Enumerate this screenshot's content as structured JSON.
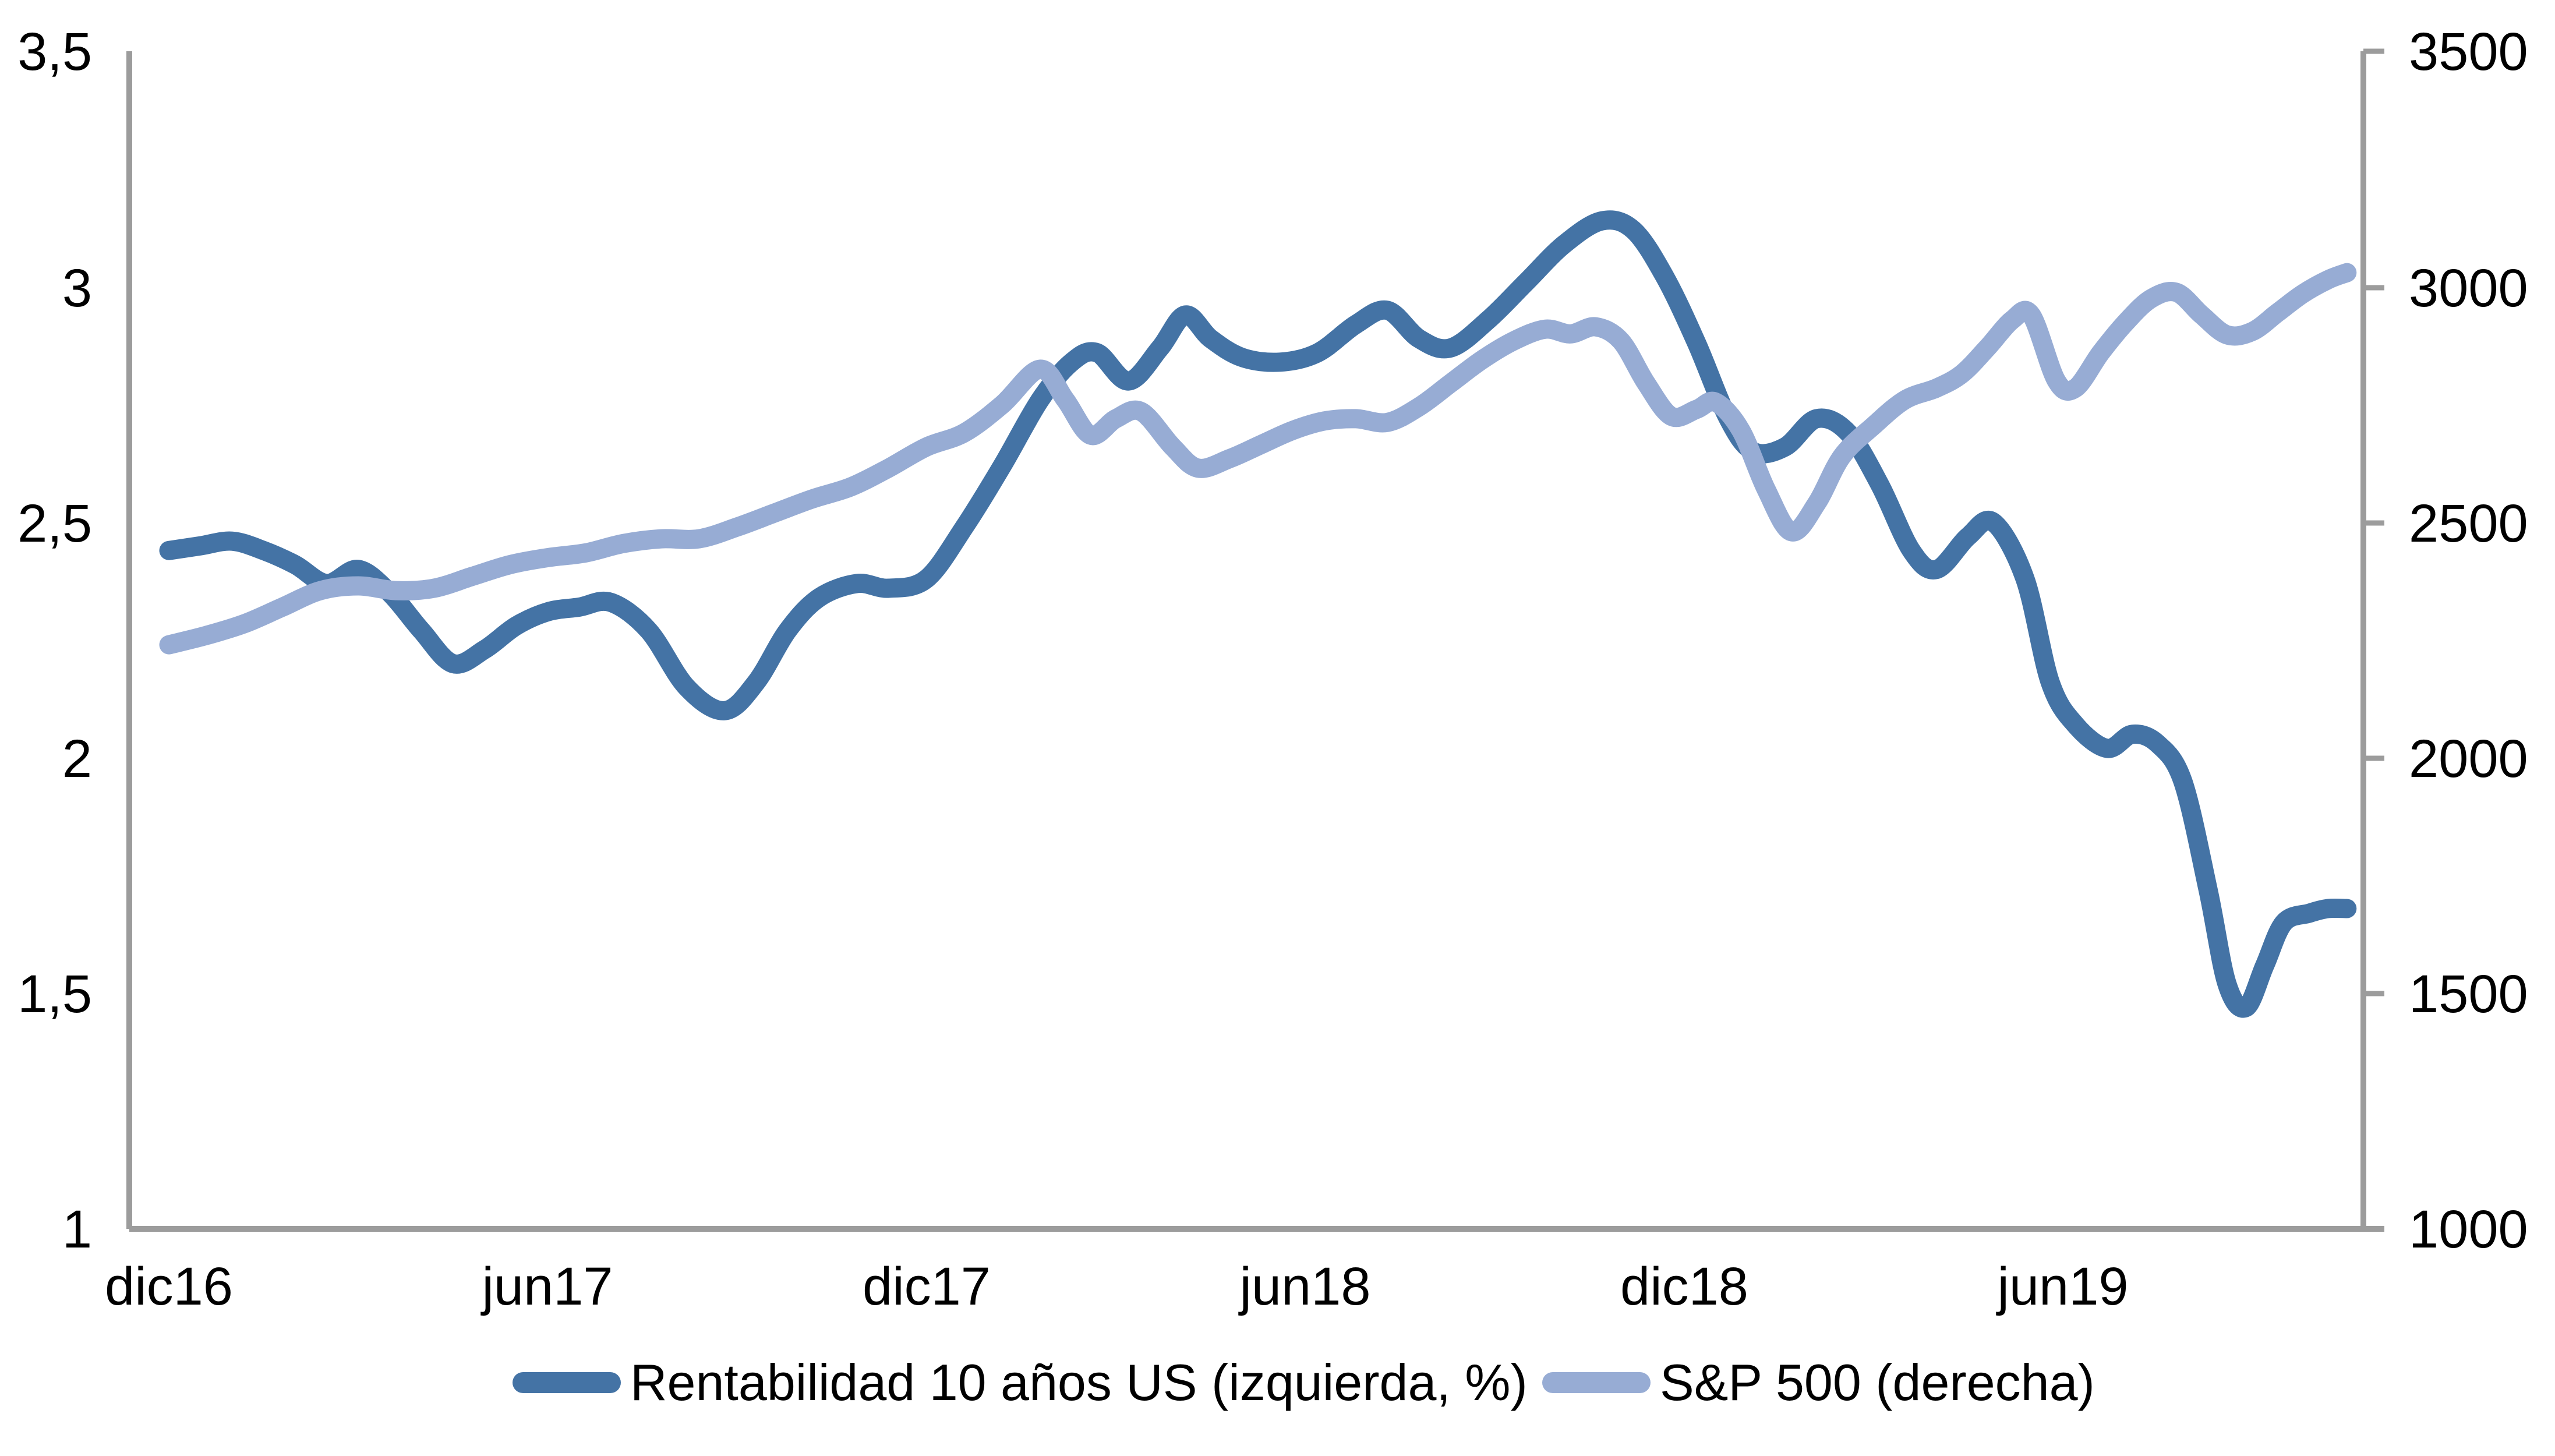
{
  "chart_data": {
    "type": "line",
    "title": "",
    "xlabel": "",
    "ylabel_left": "",
    "ylabel_right": "",
    "grid": false,
    "axis_color": "#9C9C9C",
    "text_color": "#000000",
    "x_axis": {
      "tick_labels": [
        "dic16",
        "jun17",
        "dic17",
        "jun18",
        "dic18",
        "jun19"
      ],
      "tick_months": [
        0,
        6,
        12,
        18,
        24,
        30
      ],
      "domain_months": [
        0,
        34.5
      ]
    },
    "left_axis": {
      "min": 1,
      "max": 3.5,
      "tick_values": [
        3.5,
        3,
        2.5,
        2,
        1.5,
        1
      ],
      "tick_labels": [
        "3,5",
        "3",
        "2,5",
        "2",
        "1,5",
        "1"
      ]
    },
    "right_axis": {
      "min": 1000,
      "max": 3500,
      "tick_values": [
        3500,
        3000,
        2500,
        2000,
        1500,
        1000
      ],
      "tick_labels": [
        "3500",
        "3000",
        "2500",
        "2000",
        "1500",
        "1000"
      ]
    },
    "legend": {
      "position": "bottom"
    },
    "series": [
      {
        "name": "Rentabilidad 10 años US (izquierda, %)",
        "axis": "left",
        "color": "#4473A5",
        "points": [
          [
            0,
            2.44
          ],
          [
            0.5,
            2.45
          ],
          [
            1,
            2.46
          ],
          [
            1.5,
            2.44
          ],
          [
            2,
            2.41
          ],
          [
            2.5,
            2.37
          ],
          [
            3,
            2.4
          ],
          [
            3.5,
            2.35
          ],
          [
            4,
            2.27
          ],
          [
            4.5,
            2.2
          ],
          [
            5,
            2.23
          ],
          [
            5.5,
            2.28
          ],
          [
            6,
            2.31
          ],
          [
            6.5,
            2.32
          ],
          [
            7,
            2.33
          ],
          [
            7.6,
            2.27
          ],
          [
            8.2,
            2.15
          ],
          [
            8.8,
            2.1
          ],
          [
            9.3,
            2.16
          ],
          [
            9.8,
            2.27
          ],
          [
            10.3,
            2.34
          ],
          [
            10.9,
            2.37
          ],
          [
            11.4,
            2.36
          ],
          [
            12,
            2.38
          ],
          [
            12.6,
            2.49
          ],
          [
            13.2,
            2.62
          ],
          [
            13.8,
            2.76
          ],
          [
            14.3,
            2.84
          ],
          [
            14.7,
            2.86
          ],
          [
            15.2,
            2.8
          ],
          [
            15.7,
            2.87
          ],
          [
            16.1,
            2.94
          ],
          [
            16.5,
            2.89
          ],
          [
            17,
            2.85
          ],
          [
            17.6,
            2.84
          ],
          [
            18.2,
            2.86
          ],
          [
            18.8,
            2.92
          ],
          [
            19.3,
            2.95
          ],
          [
            19.8,
            2.89
          ],
          [
            20.3,
            2.87
          ],
          [
            20.9,
            2.93
          ],
          [
            21.5,
            3.01
          ],
          [
            22.1,
            3.09
          ],
          [
            22.7,
            3.14
          ],
          [
            23.2,
            3.12
          ],
          [
            23.7,
            3.02
          ],
          [
            24.2,
            2.88
          ],
          [
            24.7,
            2.72
          ],
          [
            25.1,
            2.65
          ],
          [
            25.6,
            2.66
          ],
          [
            26.1,
            2.72
          ],
          [
            26.6,
            2.69
          ],
          [
            27.1,
            2.58
          ],
          [
            27.6,
            2.44
          ],
          [
            28,
            2.4
          ],
          [
            28.5,
            2.47
          ],
          [
            28.9,
            2.5
          ],
          [
            29.4,
            2.38
          ],
          [
            29.8,
            2.16
          ],
          [
            30.2,
            2.07
          ],
          [
            30.7,
            2.02
          ],
          [
            31.1,
            2.05
          ],
          [
            31.5,
            2.03
          ],
          [
            31.9,
            1.95
          ],
          [
            32.3,
            1.72
          ],
          [
            32.6,
            1.52
          ],
          [
            32.9,
            1.47
          ],
          [
            33.2,
            1.56
          ],
          [
            33.5,
            1.65
          ],
          [
            33.9,
            1.67
          ],
          [
            34.2,
            1.68
          ],
          [
            34.5,
            1.68
          ]
        ]
      },
      {
        "name": "S&P 500 (derecha)",
        "axis": "right",
        "color": "#97ACD4",
        "points": [
          [
            0,
            2240
          ],
          [
            0.6,
            2260
          ],
          [
            1.2,
            2285
          ],
          [
            1.8,
            2320
          ],
          [
            2.4,
            2355
          ],
          [
            3,
            2365
          ],
          [
            3.6,
            2355
          ],
          [
            4.2,
            2360
          ],
          [
            4.8,
            2385
          ],
          [
            5.4,
            2410
          ],
          [
            6,
            2425
          ],
          [
            6.6,
            2435
          ],
          [
            7.2,
            2455
          ],
          [
            7.8,
            2465
          ],
          [
            8.4,
            2465
          ],
          [
            9,
            2490
          ],
          [
            9.6,
            2520
          ],
          [
            10.2,
            2550
          ],
          [
            10.8,
            2575
          ],
          [
            11.4,
            2615
          ],
          [
            12,
            2660
          ],
          [
            12.6,
            2690
          ],
          [
            13.2,
            2750
          ],
          [
            13.8,
            2825
          ],
          [
            14.2,
            2760
          ],
          [
            14.6,
            2685
          ],
          [
            15,
            2720
          ],
          [
            15.4,
            2735
          ],
          [
            15.9,
            2660
          ],
          [
            16.3,
            2615
          ],
          [
            16.8,
            2635
          ],
          [
            17.3,
            2665
          ],
          [
            17.8,
            2695
          ],
          [
            18.3,
            2715
          ],
          [
            18.8,
            2720
          ],
          [
            19.3,
            2712
          ],
          [
            19.8,
            2745
          ],
          [
            20.3,
            2795
          ],
          [
            20.8,
            2845
          ],
          [
            21.3,
            2885
          ],
          [
            21.8,
            2910
          ],
          [
            22.2,
            2900
          ],
          [
            22.6,
            2915
          ],
          [
            23,
            2885
          ],
          [
            23.4,
            2795
          ],
          [
            23.8,
            2725
          ],
          [
            24.2,
            2740
          ],
          [
            24.5,
            2755
          ],
          [
            24.9,
            2695
          ],
          [
            25.3,
            2570
          ],
          [
            25.7,
            2480
          ],
          [
            26.1,
            2540
          ],
          [
            26.5,
            2640
          ],
          [
            27,
            2705
          ],
          [
            27.5,
            2760
          ],
          [
            28,
            2785
          ],
          [
            28.4,
            2815
          ],
          [
            28.8,
            2870
          ],
          [
            29.2,
            2930
          ],
          [
            29.5,
            2940
          ],
          [
            29.9,
            2800
          ],
          [
            30.2,
            2785
          ],
          [
            30.6,
            2860
          ],
          [
            31,
            2925
          ],
          [
            31.4,
            2975
          ],
          [
            31.8,
            2988
          ],
          [
            32.2,
            2940
          ],
          [
            32.6,
            2898
          ],
          [
            33,
            2905
          ],
          [
            33.4,
            2945
          ],
          [
            33.8,
            2985
          ],
          [
            34.2,
            3015
          ],
          [
            34.5,
            3030
          ]
        ]
      }
    ]
  }
}
